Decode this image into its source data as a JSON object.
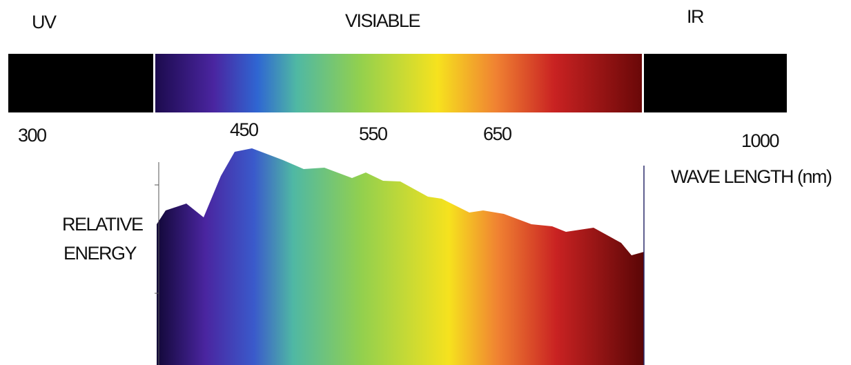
{
  "regions": {
    "uv": "UV",
    "visible": "VISIABLE",
    "ir": "IR"
  },
  "wavelength_labels": [
    "300",
    "450",
    "550",
    "650",
    "1000"
  ],
  "x_axis_label": "WAVE LENGTH (nm)",
  "y_axis_label": [
    "RELATIVE",
    "ENERGY"
  ]
}
